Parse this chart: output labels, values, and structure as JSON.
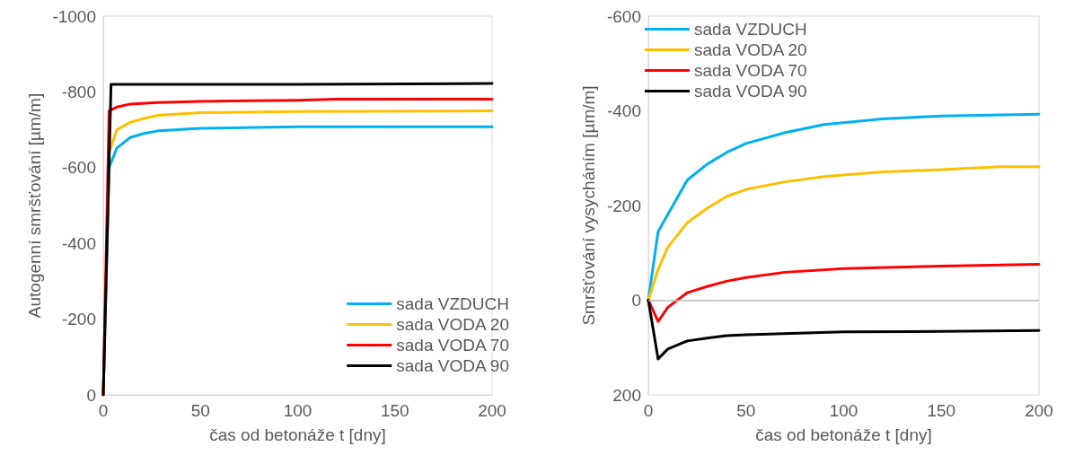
{
  "chart_data": [
    {
      "type": "line",
      "xlabel": "čas od betonáže t [dny]",
      "ylabel": "Autogenní smršťování [µm/m]",
      "xlim": [
        0,
        200
      ],
      "xticks": [
        0,
        50,
        100,
        150,
        200
      ],
      "ylim": [
        0,
        -1000
      ],
      "yticks": [
        -1000,
        -800,
        -600,
        -400,
        -200,
        0
      ],
      "grid": false,
      "legend": "bottom right",
      "marker": "none",
      "line_style": "solid",
      "series": [
        {
          "name": "sada VZDUCH",
          "color": "#00b0f0",
          "x": [
            0,
            3,
            7,
            14,
            21,
            28,
            50,
            100,
            200
          ],
          "values": [
            0,
            -600,
            -652,
            -680,
            -690,
            -697,
            -704,
            -708,
            -708
          ]
        },
        {
          "name": "sada VODA 20",
          "color": "#ffc000",
          "x": [
            0,
            3,
            7,
            14,
            21,
            28,
            50,
            100,
            200
          ],
          "values": [
            0,
            -640,
            -700,
            -720,
            -730,
            -738,
            -745,
            -748,
            -750
          ]
        },
        {
          "name": "sada VODA 70",
          "color": "#ff0000",
          "x": [
            0,
            3,
            7,
            14,
            28,
            50,
            100,
            120,
            200
          ],
          "values": [
            0,
            -750,
            -760,
            -768,
            -772,
            -775,
            -778,
            -781,
            -781
          ]
        },
        {
          "name": "sada VODA 90",
          "color": "#000000",
          "x": [
            0,
            4,
            100,
            200
          ],
          "values": [
            0,
            -820,
            -820,
            -822
          ]
        }
      ]
    },
    {
      "type": "line",
      "xlabel": "čas od betonáže t [dny]",
      "ylabel": "Smršťování vysycháním [µm/m]",
      "xlim": [
        0,
        200
      ],
      "xticks": [
        0,
        50,
        100,
        150,
        200
      ],
      "ylim": [
        200,
        -600
      ],
      "yticks": [
        -600,
        -400,
        -200,
        0,
        200
      ],
      "grid": false,
      "legend": "top left",
      "marker": "none",
      "line_style": "solid",
      "ref_lines": [
        {
          "axis": "y",
          "value": 0,
          "label": null,
          "color": "#bfbfbf"
        }
      ],
      "series": [
        {
          "name": "sada VZDUCH",
          "color": "#00b0f0",
          "x": [
            0,
            5,
            20,
            30,
            40,
            50,
            70,
            90,
            120,
            150,
            200
          ],
          "values": [
            0,
            -145,
            -254,
            -287,
            -312,
            -331,
            -354,
            -371,
            -383,
            -389,
            -393
          ]
        },
        {
          "name": "sada VODA 20",
          "color": "#ffc000",
          "x": [
            0,
            5,
            10,
            20,
            30,
            40,
            50,
            70,
            90,
            120,
            150,
            180,
            200
          ],
          "values": [
            0,
            -65,
            -112,
            -164,
            -194,
            -219,
            -234,
            -250,
            -261,
            -271,
            -276,
            -282,
            -282
          ]
        },
        {
          "name": "sada VODA 70",
          "color": "#ff0000",
          "x": [
            0,
            5,
            10,
            20,
            30,
            40,
            50,
            70,
            100,
            150,
            200
          ],
          "values": [
            0,
            45,
            15,
            -16,
            -29,
            -40,
            -48,
            -59,
            -67,
            -72,
            -76
          ]
        },
        {
          "name": "sada VODA 90",
          "color": "#000000",
          "x": [
            0,
            5,
            10,
            20,
            30,
            40,
            50,
            100,
            150,
            200
          ],
          "values": [
            0,
            124,
            103,
            86,
            80,
            75,
            73,
            67,
            66,
            64
          ]
        }
      ]
    }
  ]
}
